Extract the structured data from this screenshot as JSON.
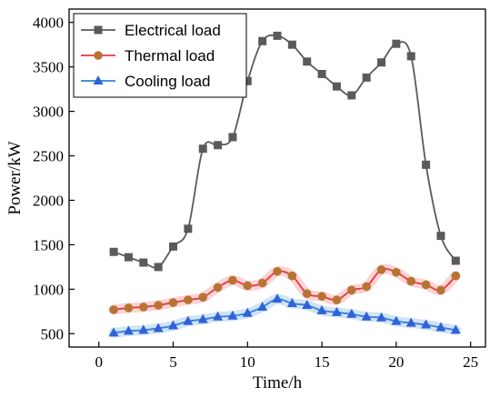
{
  "chart_data": {
    "type": "line",
    "xlabel": "Time/h",
    "ylabel": "Power/kW",
    "xlim": [
      -2,
      26
    ],
    "ylim": [
      350,
      4150
    ],
    "xticks": [
      0,
      5,
      10,
      15,
      20,
      25
    ],
    "yticks": [
      500,
      1000,
      1500,
      2000,
      2500,
      3000,
      3500,
      4000
    ],
    "x": [
      1,
      2,
      3,
      4,
      5,
      6,
      7,
      8,
      9,
      10,
      11,
      12,
      13,
      14,
      15,
      16,
      17,
      18,
      19,
      20,
      21,
      22,
      23,
      24
    ],
    "legend_position": "top-left",
    "series": [
      {
        "name": "Electrical load",
        "color": "#5a5a5a",
        "marker": "square",
        "values": [
          1420,
          1360,
          1300,
          1250,
          1480,
          1680,
          2580,
          2620,
          2710,
          3340,
          3790,
          3850,
          3750,
          3560,
          3420,
          3280,
          3180,
          3380,
          3550,
          3760,
          3620,
          2400,
          1600,
          1320
        ]
      },
      {
        "name": "Thermal load",
        "color": "#e8383d",
        "fill": "#b87333",
        "marker": "circle",
        "values": [
          770,
          790,
          800,
          820,
          850,
          880,
          910,
          1020,
          1100,
          1040,
          1070,
          1200,
          1150,
          950,
          920,
          880,
          990,
          1030,
          1220,
          1190,
          1090,
          1050,
          990,
          1150
        ]
      },
      {
        "name": "Cooling load",
        "color": "#2f7fd8",
        "fill": "#2f62d8",
        "marker": "triangle",
        "values": [
          510,
          530,
          540,
          560,
          590,
          640,
          660,
          690,
          700,
          730,
          800,
          890,
          840,
          820,
          760,
          740,
          720,
          690,
          680,
          640,
          620,
          600,
          570,
          540
        ]
      }
    ]
  }
}
